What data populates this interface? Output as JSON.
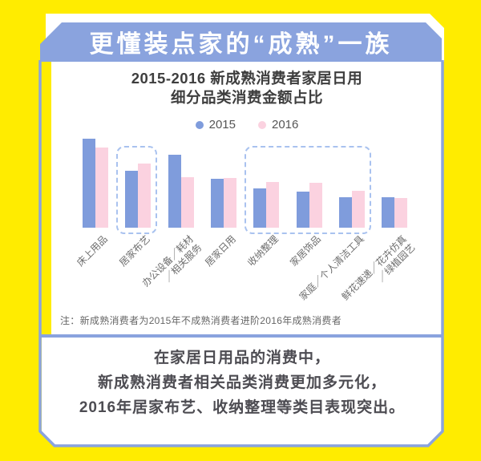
{
  "banner": {
    "title": "更懂装点家的“成熟”一族"
  },
  "colors": {
    "background_yellow": "#FFEC00",
    "banner_blue": "#8AA3DE",
    "frame_blue": "#8AA3DE",
    "bar_2015_blue": "#7F9CDC",
    "bar_2016_pink": "#FBD2E0",
    "highlight_dash_blue": "#A9C2EF",
    "panel_white": "#FFFFFF",
    "title_text": "#3E3E3E",
    "footer_text": "#4D4C52",
    "note_text": "#666666"
  },
  "chart_data": {
    "type": "bar",
    "title": "2015-2016 新成熟消费者家居日用细分品类消费金额占比",
    "title_lines": [
      "2015-2016 新成熟消费者家居日用",
      "细分品类消费金额占比"
    ],
    "legend_position": "top-center",
    "value_scale": "relative bar heights (no numeric axis shown in figure), estimated px units",
    "categories": [
      "床上用品",
      "居家布艺",
      "办公设备／耗材\n／相关服务",
      "居家日用",
      "收纳整理",
      "家居饰品",
      "家庭／个人清洁工具",
      "鲜花速递／花卉仿真\n／绿植园艺"
    ],
    "series": [
      {
        "name": "2015",
        "color": "#7F9CDC",
        "values": [
          111,
          71,
          91,
          61,
          49,
          45,
          38,
          38
        ]
      },
      {
        "name": "2016",
        "color": "#FBD2E0",
        "values": [
          100,
          80,
          63,
          62,
          57,
          56,
          46,
          37
        ]
      }
    ],
    "highlight_boxes": [
      {
        "from": 1,
        "to": 1
      },
      {
        "from": 4,
        "to": 6
      }
    ],
    "note": "注：新成熟消费者为2015年不成熟消费者进阶2016年成熟消费者"
  },
  "footer": {
    "lines": [
      "在家居日用品的消费中，",
      "新成熟消费者相关品类消费更加多元化，",
      "2016年居家布艺、收纳整理等类目表现突出。"
    ]
  }
}
